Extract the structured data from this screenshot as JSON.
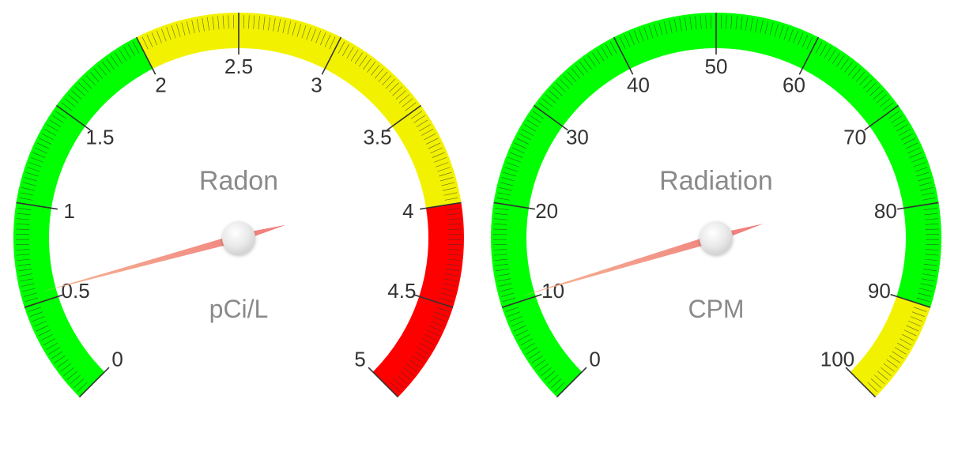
{
  "gauges": [
    {
      "title": "Radon",
      "units": "pCi/L",
      "min": 0,
      "max": 5,
      "value": 0.55,
      "major_ticks": [
        "0",
        "0.5",
        "1",
        "1.5",
        "2",
        "2.5",
        "3",
        "3.5",
        "4",
        "4.5",
        "5"
      ],
      "minor_per_major": 20,
      "bands": [
        {
          "from": 0,
          "to": 2,
          "color": "#00ff00"
        },
        {
          "from": 2,
          "to": 4,
          "color": "#f2f200"
        },
        {
          "from": 4,
          "to": 5,
          "color": "#ff0000"
        }
      ]
    },
    {
      "title": "Radiation",
      "units": "CPM",
      "min": 0,
      "max": 100,
      "value": 10.5,
      "major_ticks": [
        "0",
        "10",
        "20",
        "30",
        "40",
        "50",
        "60",
        "70",
        "80",
        "90",
        "100"
      ],
      "minor_per_major": 20,
      "bands": [
        {
          "from": 0,
          "to": 90,
          "color": "#00ff00"
        },
        {
          "from": 90,
          "to": 100,
          "color": "#f2f200"
        }
      ]
    }
  ],
  "colors": {
    "tick": "#333333",
    "label": "#333333",
    "title": "#8a8a8a",
    "needle_start": "#f4b08a",
    "needle_end": "#ef6d6d",
    "hub": "#e6e6e6"
  }
}
